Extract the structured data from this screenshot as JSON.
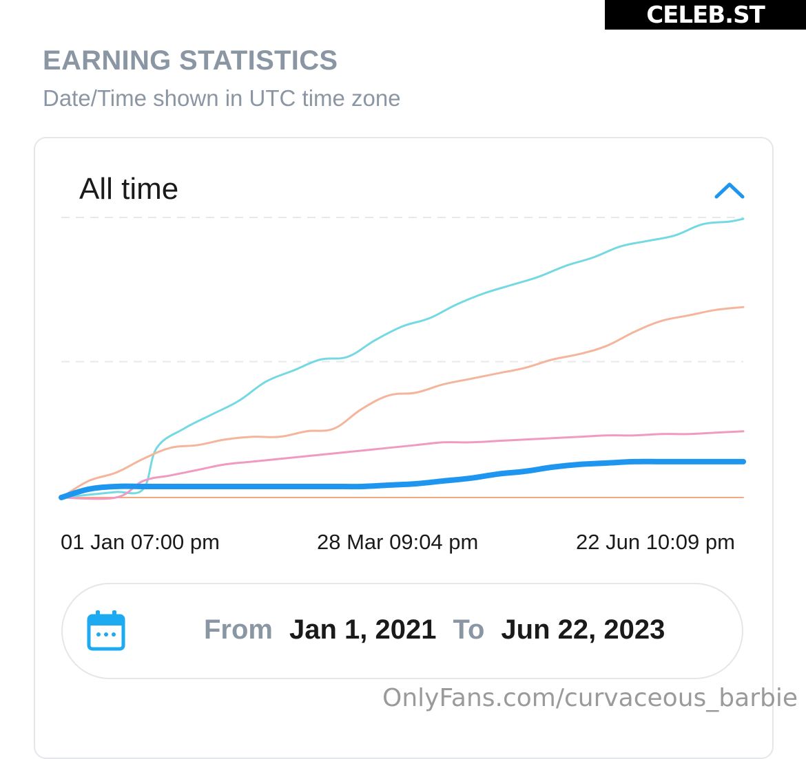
{
  "brand_badge": "CELEB.ST",
  "header": {
    "title": "EARNING STATISTICS",
    "subtitle": "Date/Time shown in UTC time zone"
  },
  "card": {
    "period_label": "All time",
    "toggle_icon": "chevron-up-icon"
  },
  "date_range": {
    "icon": "calendar-icon",
    "from_label": "From",
    "from_value": "Jan 1, 2021",
    "to_label": "To",
    "to_value": "Jun 22, 2023"
  },
  "watermark": "OnlyFans.com/curvaceous_barbie",
  "colors": {
    "accent": "#1e96f0",
    "muted_text": "#8a96a3",
    "series_cyan": "#74d9e2",
    "series_salmon": "#f5b49c",
    "series_pink": "#f09ac0",
    "series_blue": "#1e96f0",
    "series_orange": "#f2a982"
  },
  "chart_data": {
    "type": "line",
    "x_tick_labels": [
      "01 Jan 07:00 pm",
      "28 Mar 09:04 pm",
      "22 Jun 10:09 pm"
    ],
    "ylim": [
      0,
      100
    ],
    "grid": "horizontal dashed",
    "series": [
      {
        "color": "#74d9e2",
        "width": 3,
        "x": [
          0,
          4,
          8,
          12,
          14,
          18,
          22,
          26,
          30,
          34,
          38,
          42,
          46,
          50,
          54,
          58,
          62,
          66,
          70,
          74,
          78,
          82,
          86,
          90,
          94,
          98,
          100
        ],
        "y": [
          0,
          1,
          2,
          3,
          18,
          25,
          30,
          35,
          42,
          46,
          50,
          51,
          57,
          62,
          65,
          70,
          74,
          77,
          80,
          84,
          87,
          91,
          93,
          95,
          99,
          100,
          101
        ]
      },
      {
        "color": "#f5b49c",
        "width": 3,
        "x": [
          0,
          4,
          8,
          12,
          16,
          20,
          24,
          28,
          32,
          36,
          40,
          44,
          48,
          52,
          56,
          60,
          64,
          68,
          72,
          76,
          80,
          84,
          88,
          92,
          96,
          100
        ],
        "y": [
          0,
          6,
          9,
          14,
          18,
          19,
          21,
          22,
          22,
          24,
          25,
          32,
          37,
          38,
          41,
          43,
          45,
          47,
          50,
          52,
          55,
          60,
          64,
          66,
          68,
          69
        ]
      },
      {
        "color": "#f09ac0",
        "width": 3,
        "x": [
          0,
          8,
          12,
          16,
          20,
          24,
          28,
          32,
          36,
          40,
          44,
          48,
          52,
          56,
          60,
          64,
          68,
          72,
          76,
          80,
          84,
          88,
          92,
          96,
          100
        ],
        "y": [
          0,
          0,
          6,
          8,
          10,
          12,
          13,
          14,
          15,
          16,
          17,
          18,
          19,
          20,
          20,
          20.5,
          21,
          21.5,
          22,
          22.5,
          22.5,
          23,
          23,
          23.5,
          24
        ]
      },
      {
        "color": "#1e96f0",
        "width": 8,
        "x": [
          0,
          4,
          8,
          12,
          16,
          20,
          24,
          28,
          32,
          36,
          40,
          44,
          48,
          52,
          56,
          60,
          64,
          68,
          72,
          76,
          80,
          84,
          88,
          92,
          96,
          100
        ],
        "y": [
          0,
          3,
          4,
          4,
          4,
          4,
          4,
          4,
          4,
          4,
          4,
          4,
          4.5,
          5,
          6,
          7,
          8.5,
          9.5,
          11,
          12,
          12.5,
          13,
          13,
          13,
          13,
          13
        ]
      },
      {
        "color": "#f2a982",
        "width": 2,
        "x": [
          0,
          100
        ],
        "y": [
          0,
          0
        ]
      }
    ]
  }
}
